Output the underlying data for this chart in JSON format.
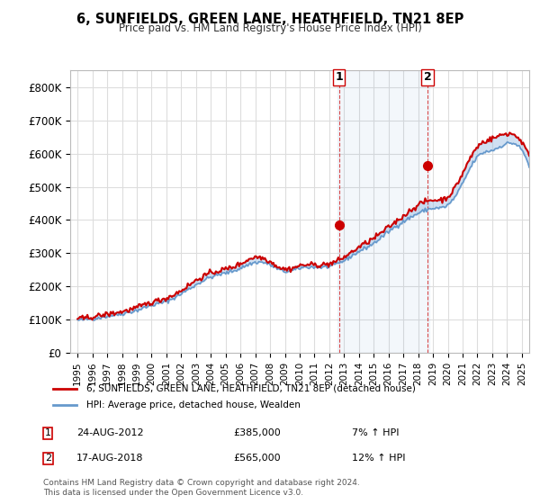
{
  "title": "6, SUNFIELDS, GREEN LANE, HEATHFIELD, TN21 8EP",
  "subtitle": "Price paid vs. HM Land Registry's House Price Index (HPI)",
  "ylabel_ticks": [
    "£0",
    "£100K",
    "£200K",
    "£300K",
    "£400K",
    "£500K",
    "£600K",
    "£700K",
    "£800K"
  ],
  "ytick_values": [
    0,
    100000,
    200000,
    300000,
    400000,
    500000,
    600000,
    700000,
    800000
  ],
  "ylim": [
    0,
    850000
  ],
  "xlim_start": 1994.5,
  "xlim_end": 2025.5,
  "transaction1": {
    "date_num": 2012.65,
    "price": 385000,
    "label": "1",
    "hpi_pct": "7%"
  },
  "transaction2": {
    "date_num": 2018.63,
    "price": 565000,
    "label": "2",
    "hpi_pct": "12%"
  },
  "legend_line1": "6, SUNFIELDS, GREEN LANE, HEATHFIELD, TN21 8EP (detached house)",
  "legend_line2": "HPI: Average price, detached house, Wealden",
  "annotation1": "1  24-AUG-2012        £385,000        7% ↑ HPI",
  "annotation2": "2  17-AUG-2018        £565,000        12% ↑ HPI",
  "copyright": "Contains HM Land Registry data © Crown copyright and database right 2024.\nThis data is licensed under the Open Government Licence v3.0.",
  "hpi_color": "#6699cc",
  "price_color": "#cc0000",
  "shade_color": "#ddeeff",
  "marker_color": "#cc0000",
  "vline_color": "#cc0000",
  "background_color": "#ffffff",
  "grid_color": "#dddddd",
  "xtick_years": [
    1995,
    1996,
    1997,
    1998,
    1999,
    2000,
    2001,
    2002,
    2003,
    2004,
    2005,
    2006,
    2007,
    2008,
    2009,
    2010,
    2011,
    2012,
    2013,
    2014,
    2015,
    2016,
    2017,
    2018,
    2019,
    2020,
    2021,
    2022,
    2023,
    2024,
    2025
  ]
}
